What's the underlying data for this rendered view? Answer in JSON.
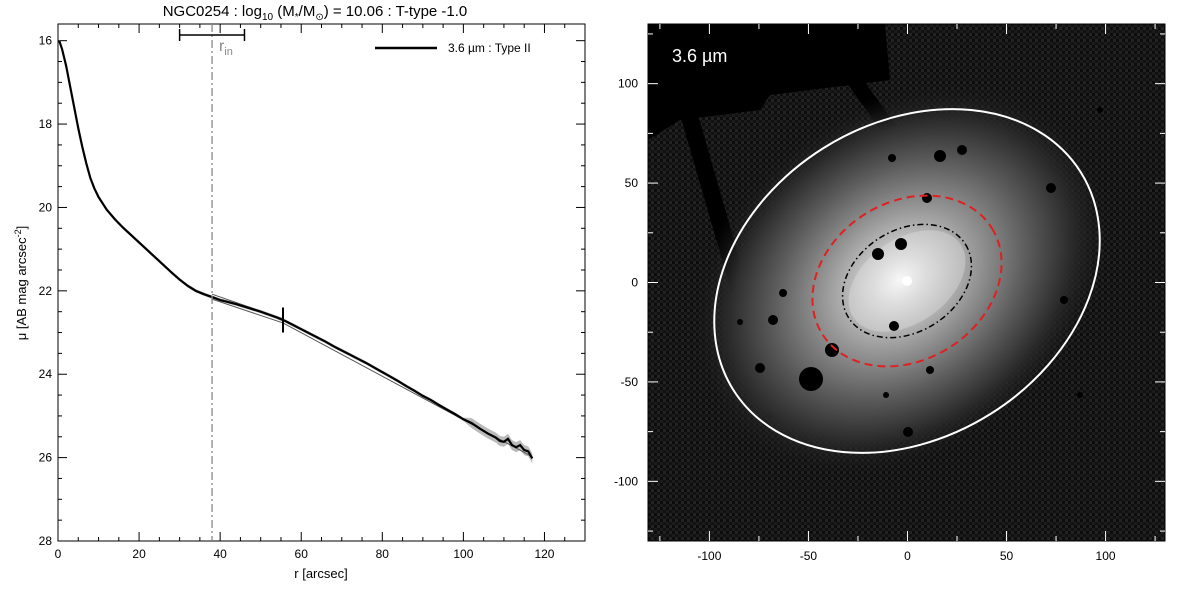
{
  "chart_data": [
    {
      "type": "line",
      "title_parts": {
        "name": "NGC0254 : log",
        "sub10": "10",
        "mid": " (M",
        "star": "*",
        "slash": "/M",
        "sun": "⊙",
        "tail": ") = 10.06 : T-type -1.0"
      },
      "xlabel": "r [arcsec]",
      "ylabel_main": "μ [AB mag arcsec",
      "ylabel_sup": "-2",
      "ylabel_end": "]",
      "xlim": [
        0,
        130
      ],
      "ylim": [
        28,
        15.6
      ],
      "y_inverted": true,
      "xticks": [
        0,
        20,
        40,
        60,
        80,
        100,
        120
      ],
      "yticks": [
        16,
        18,
        20,
        22,
        24,
        26,
        28
      ],
      "legend": {
        "label": "3.6 µm : Type II",
        "position": "top-right",
        "color": "#000000"
      },
      "rin_label": "r",
      "rin_sub": "in",
      "rin_x": 38,
      "rin_interval": [
        30,
        46
      ],
      "break_radius": 55.5,
      "series": [
        {
          "name": "3.6 µm : Type II",
          "color": "#000000",
          "x": [
            0.3,
            1,
            2,
            3,
            4,
            5,
            6,
            7,
            8,
            9,
            10,
            12,
            14,
            16,
            18,
            20,
            22,
            24,
            26,
            28,
            30,
            32,
            34,
            36,
            38,
            40,
            42,
            44,
            46,
            48,
            50,
            52,
            54,
            56,
            58,
            60,
            62,
            64,
            66,
            68,
            70,
            72,
            74,
            76,
            78,
            80,
            82,
            84,
            86,
            88,
            90,
            92,
            94,
            96,
            98,
            100,
            102,
            104,
            106,
            108,
            109,
            110,
            111,
            112,
            113,
            114,
            115,
            116,
            117
          ],
          "y": [
            16.0,
            16.2,
            16.6,
            17.1,
            17.6,
            18.1,
            18.55,
            18.95,
            19.3,
            19.55,
            19.75,
            20.05,
            20.28,
            20.48,
            20.66,
            20.84,
            21.02,
            21.2,
            21.38,
            21.56,
            21.73,
            21.88,
            22.0,
            22.08,
            22.15,
            22.22,
            22.27,
            22.32,
            22.38,
            22.44,
            22.5,
            22.57,
            22.64,
            22.72,
            22.82,
            22.92,
            23.02,
            23.12,
            23.22,
            23.33,
            23.43,
            23.53,
            23.63,
            23.73,
            23.84,
            23.95,
            24.06,
            24.17,
            24.29,
            24.4,
            24.52,
            24.62,
            24.74,
            24.85,
            24.96,
            25.08,
            25.17,
            25.3,
            25.42,
            25.52,
            25.6,
            25.62,
            25.55,
            25.7,
            25.75,
            25.7,
            25.82,
            25.85,
            26.02
          ],
          "fit_inner": {
            "x": [
              38,
              55.5
            ],
            "y": [
              22.08,
              22.67
            ]
          },
          "fit_outer": {
            "x": [
              38,
              55.5,
              117
            ],
            "y": [
              22.2,
              22.77,
              25.98
            ]
          }
        }
      ]
    },
    {
      "type": "image",
      "band_label": "3.6 µm",
      "xlim": [
        -131,
        130
      ],
      "ylim": [
        -130,
        130
      ],
      "xticks": [
        -100,
        -50,
        0,
        50,
        100
      ],
      "yticks": [
        -100,
        -50,
        0,
        50,
        100
      ],
      "colors": {
        "background": "#0c0c0c",
        "outer_ellipse": "#ffffff",
        "break_ellipse": "#e02020",
        "inner_ellipse": "#000000"
      }
    }
  ]
}
